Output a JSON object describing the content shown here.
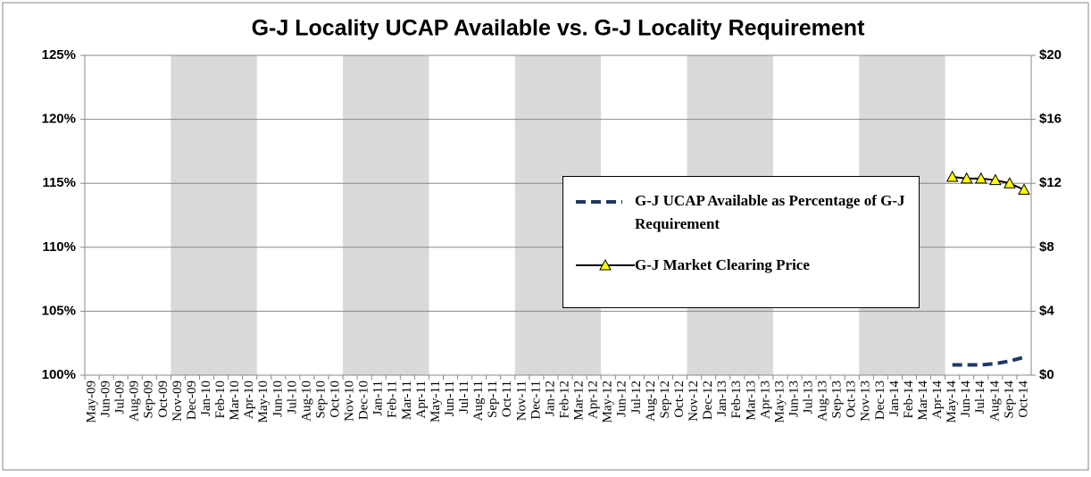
{
  "chart_data": {
    "type": "line",
    "title": "G-J Locality UCAP Available vs. G-J Locality Requirement",
    "categories": [
      "May-09",
      "Jun-09",
      "Jul-09",
      "Aug-09",
      "Sep-09",
      "Oct-09",
      "Nov-09",
      "Dec-09",
      "Jan-10",
      "Feb-10",
      "Mar-10",
      "Apr-10",
      "May-10",
      "Jun-10",
      "Jul-10",
      "Aug-10",
      "Sep-10",
      "Oct-10",
      "Nov-10",
      "Dec-10",
      "Jan-11",
      "Feb-11",
      "Mar-11",
      "Apr-11",
      "May-11",
      "Jun-11",
      "Jul-11",
      "Aug-11",
      "Sep-11",
      "Oct-11",
      "Nov-11",
      "Dec-11",
      "Jan-12",
      "Feb-12",
      "Mar-12",
      "Apr-12",
      "May-12",
      "Jun-12",
      "Jul-12",
      "Aug-12",
      "Sep-12",
      "Oct-12",
      "Nov-12",
      "Dec-12",
      "Jan-13",
      "Feb-13",
      "Mar-13",
      "Apr-13",
      "May-13",
      "Jun-13",
      "Jul-13",
      "Aug-13",
      "Sep-13",
      "Oct-13",
      "Nov-13",
      "Dec-13",
      "Jan-14",
      "Feb-14",
      "Mar-14",
      "Apr-14",
      "May-14",
      "Jun-14",
      "Jul-14",
      "Aug-14",
      "Sep-14",
      "Oct-14"
    ],
    "series": [
      {
        "name": "G-J UCAP Available as Percentage of G-J Requirement",
        "color": "#1f3864",
        "dashed": true,
        "values": [
          null,
          null,
          null,
          null,
          null,
          null,
          null,
          null,
          null,
          null,
          null,
          null,
          null,
          null,
          null,
          null,
          null,
          null,
          null,
          null,
          null,
          null,
          null,
          null,
          null,
          null,
          null,
          null,
          null,
          null,
          null,
          null,
          null,
          null,
          null,
          null,
          null,
          null,
          null,
          null,
          null,
          null,
          null,
          null,
          null,
          null,
          null,
          null,
          null,
          null,
          null,
          null,
          null,
          null,
          null,
          null,
          null,
          null,
          null,
          null,
          100.8,
          100.8,
          100.8,
          100.9,
          101.1,
          101.4
        ]
      },
      {
        "name": "G-J Market Clearing Price",
        "color": "#000000",
        "marker_color": "#ffff00",
        "axis": "y2",
        "values": [
          null,
          null,
          null,
          null,
          null,
          null,
          null,
          null,
          null,
          null,
          null,
          null,
          null,
          null,
          null,
          null,
          null,
          null,
          null,
          null,
          null,
          null,
          null,
          null,
          null,
          null,
          null,
          null,
          null,
          null,
          null,
          null,
          null,
          null,
          null,
          null,
          null,
          null,
          null,
          null,
          null,
          null,
          null,
          null,
          null,
          null,
          null,
          null,
          null,
          null,
          null,
          null,
          null,
          null,
          null,
          null,
          null,
          null,
          null,
          null,
          12.4,
          12.3,
          12.3,
          12.2,
          12.0,
          11.6
        ]
      }
    ],
    "ylim": [
      100,
      125
    ],
    "yticks": [
      {
        "value": 100,
        "label": "100%"
      },
      {
        "value": 105,
        "label": "105%"
      },
      {
        "value": 110,
        "label": "110%"
      },
      {
        "value": 115,
        "label": "115%"
      },
      {
        "value": 120,
        "label": "120%"
      },
      {
        "value": 125,
        "label": "125%"
      }
    ],
    "y2lim": [
      0,
      20
    ],
    "y2ticks": [
      {
        "value": 0,
        "label": "$0"
      },
      {
        "value": 4,
        "label": "$4"
      },
      {
        "value": 8,
        "label": "$8"
      },
      {
        "value": 12,
        "label": "$12"
      },
      {
        "value": 16,
        "label": "$16"
      },
      {
        "value": 20,
        "label": "$20"
      }
    ],
    "grid": true
  }
}
